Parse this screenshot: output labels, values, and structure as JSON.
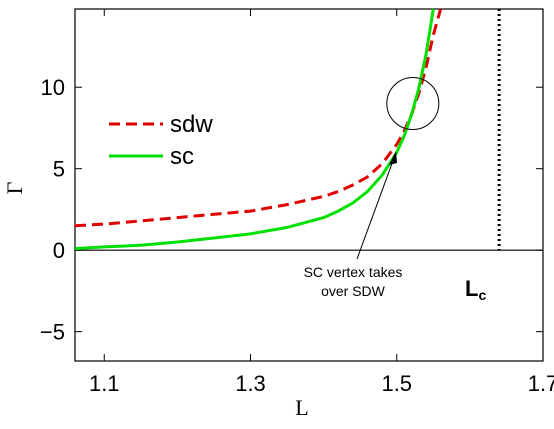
{
  "chart_data": {
    "type": "line",
    "xlabel": "L",
    "ylabel": "Γ",
    "xlim": [
      1.06,
      1.7
    ],
    "ylim": [
      -6.8,
      14.8
    ],
    "x_ticks": [
      "1.1",
      "1.3",
      "1.5",
      "1.7"
    ],
    "x_tick_values": [
      1.1,
      1.3,
      1.5,
      1.7
    ],
    "y_ticks": [
      "−5",
      "0",
      "5",
      "10"
    ],
    "y_tick_values": [
      -5,
      0,
      5,
      10
    ],
    "grid": false,
    "legend_placement": "top-left",
    "series": [
      {
        "name": "sdw",
        "color": "#e00000",
        "style": "dashed",
        "x": [
          1.06,
          1.1,
          1.15,
          1.2,
          1.25,
          1.3,
          1.35,
          1.4,
          1.42,
          1.44,
          1.46,
          1.48,
          1.5,
          1.51,
          1.52,
          1.53,
          1.54,
          1.55,
          1.56
        ],
        "y": [
          1.5,
          1.6,
          1.8,
          2.0,
          2.2,
          2.4,
          2.8,
          3.3,
          3.6,
          4.0,
          4.5,
          5.3,
          6.5,
          7.3,
          8.3,
          9.6,
          11.2,
          13.2,
          14.8
        ]
      },
      {
        "name": "sc",
        "color": "#00e000",
        "style": "solid",
        "x": [
          1.06,
          1.1,
          1.15,
          1.2,
          1.25,
          1.3,
          1.35,
          1.4,
          1.42,
          1.44,
          1.46,
          1.48,
          1.5,
          1.51,
          1.52,
          1.53,
          1.54,
          1.545,
          1.55
        ],
        "y": [
          0.1,
          0.2,
          0.3,
          0.5,
          0.75,
          1.0,
          1.4,
          2.0,
          2.4,
          2.9,
          3.6,
          4.6,
          6.0,
          7.0,
          8.3,
          9.9,
          12.0,
          13.4,
          14.8
        ]
      }
    ],
    "critical_line": {
      "x": 1.64,
      "label": "L",
      "subscript": "c"
    },
    "annotation": {
      "line1": "SC vertex takes",
      "line2": "over SDW",
      "circle_center": [
        1.522,
        9.0
      ]
    }
  }
}
